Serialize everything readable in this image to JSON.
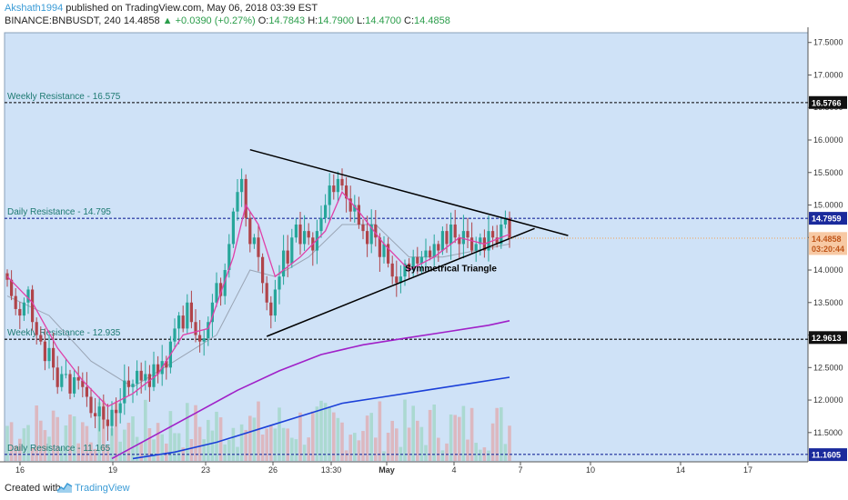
{
  "header": {
    "author": "Akshath1994",
    "published": "published on TradingView.com, May 06, 2018 03:39 EST",
    "symbol": "BINANCE:BNBUSDT, 240",
    "last": "14.4858",
    "change_arrow": "▲",
    "change": "+0.0390 (+0.27%)",
    "o_label": "O:",
    "o": "14.7843",
    "h_label": "H:",
    "h": "14.7900",
    "l_label": "L:",
    "l": "14.4700",
    "c_label": "C:",
    "c": "14.4858"
  },
  "footer": {
    "created_with": "Created with",
    "brand": "TradingView"
  },
  "colors": {
    "background": "#cfe2f7",
    "up": "#26a69a",
    "down": "#b0444a",
    "ma_fast": "#e040a8",
    "ma_slow": "#9aa5b5",
    "ma200": "#a020c8",
    "ma_blue": "#1a3fd8",
    "pattern": "#000000"
  },
  "chart_data": {
    "type": "candlestick",
    "title": "",
    "ylim": [
      11.05,
      17.65
    ],
    "y_ticks": [
      "17.5000",
      "17.0000",
      "16.5000",
      "16.0000",
      "15.5000",
      "15.0000",
      "14.5000",
      "14.0000",
      "13.5000",
      "13.0000",
      "12.5000",
      "12.0000",
      "11.5000"
    ],
    "x_ticks": [
      "16",
      "19",
      "23",
      "26",
      "13:30",
      "May",
      "4",
      "7",
      "10",
      "14",
      "17"
    ],
    "price_labels": [
      {
        "value": 16.5766,
        "text": "16.5766",
        "style": "black"
      },
      {
        "value": 14.7959,
        "text": "14.7959",
        "style": "navy"
      },
      {
        "value": 14.4858,
        "text": "14.4858",
        "style": "orange"
      },
      {
        "value": 14.33,
        "text": "03:20:44",
        "style": "orange"
      },
      {
        "value": 12.9613,
        "text": "12.9613",
        "style": "black"
      },
      {
        "value": 11.1605,
        "text": "11.1605",
        "style": "navy"
      }
    ],
    "levels": [
      {
        "name": "Weekly Resistance - 16.575",
        "value": 16.575,
        "color": "#000000"
      },
      {
        "name": "Daily Resistance - 14.795",
        "value": 14.795,
        "color": "#1a2a9c"
      },
      {
        "name": "Weekly Resistance - 12.935",
        "value": 12.935,
        "color": "#000000"
      },
      {
        "name": "Daily Resistance - 11.165",
        "value": 11.165,
        "color": "#1a2a9c"
      }
    ],
    "annotation": "Symmetrical Triangle",
    "closes": [
      13.85,
      13.6,
      13.4,
      13.3,
      13.5,
      13.7,
      13.2,
      13.0,
      12.9,
      12.6,
      12.8,
      12.5,
      12.2,
      12.4,
      12.4,
      12.1,
      12.35,
      12.3,
      12.2,
      12.05,
      11.8,
      11.75,
      11.9,
      11.7,
      11.6,
      11.85,
      11.8,
      11.95,
      12.3,
      12.2,
      12.25,
      12.45,
      12.3,
      12.4,
      12.2,
      12.55,
      12.4,
      12.6,
      12.5,
      12.9,
      13.1,
      13.3,
      13.1,
      13.5,
      13.2,
      13.0,
      12.9,
      12.95,
      13.2,
      13.5,
      13.8,
      13.6,
      14.0,
      14.4,
      14.9,
      15.2,
      15.4,
      14.8,
      14.4,
      14.5,
      14.2,
      13.8,
      13.5,
      13.3,
      13.7,
      13.9,
      14.3,
      14.1,
      14.5,
      14.7,
      14.4,
      14.6,
      14.5,
      14.3,
      14.6,
      14.8,
      15.0,
      15.3,
      15.2,
      15.4,
      15.3,
      15.1,
      14.9,
      15.0,
      14.7,
      14.6,
      14.4,
      14.7,
      14.5,
      14.2,
      14.4,
      14.1,
      13.9,
      13.8,
      13.9,
      14.1,
      14.0,
      14.2,
      14.1,
      14.2,
      14.3,
      14.2,
      14.4,
      14.3,
      14.6,
      14.4,
      14.7,
      14.5,
      14.4,
      14.6,
      14.5,
      14.3,
      14.4,
      14.5,
      14.3,
      14.6,
      14.5,
      14.4,
      14.7,
      14.8,
      14.49
    ],
    "ma_fast": [
      [
        0,
        13.9
      ],
      [
        6,
        13.5
      ],
      [
        12,
        12.8
      ],
      [
        18,
        12.3
      ],
      [
        24,
        11.9
      ],
      [
        30,
        12.1
      ],
      [
        36,
        12.4
      ],
      [
        42,
        13.0
      ],
      [
        48,
        13.1
      ],
      [
        54,
        14.2
      ],
      [
        57,
        15.0
      ],
      [
        60,
        14.7
      ],
      [
        64,
        13.9
      ],
      [
        70,
        14.2
      ],
      [
        76,
        14.6
      ],
      [
        80,
        15.2
      ],
      [
        84,
        14.9
      ],
      [
        90,
        14.4
      ],
      [
        96,
        14.0
      ],
      [
        102,
        14.2
      ],
      [
        108,
        14.5
      ],
      [
        114,
        14.4
      ],
      [
        120,
        14.55
      ]
    ],
    "ma_slow": [
      [
        0,
        13.6
      ],
      [
        10,
        13.3
      ],
      [
        20,
        12.6
      ],
      [
        30,
        12.2
      ],
      [
        40,
        12.6
      ],
      [
        50,
        13.0
      ],
      [
        58,
        14.0
      ],
      [
        64,
        13.9
      ],
      [
        72,
        14.2
      ],
      [
        80,
        14.7
      ],
      [
        88,
        14.7
      ],
      [
        96,
        14.2
      ],
      [
        104,
        14.2
      ],
      [
        112,
        14.3
      ],
      [
        120,
        14.4
      ]
    ],
    "ma200": [
      [
        25,
        11.1
      ],
      [
        35,
        11.45
      ],
      [
        45,
        11.8
      ],
      [
        55,
        12.15
      ],
      [
        65,
        12.45
      ],
      [
        75,
        12.7
      ],
      [
        85,
        12.85
      ],
      [
        95,
        12.95
      ],
      [
        105,
        13.05
      ],
      [
        115,
        13.15
      ],
      [
        120,
        13.22
      ]
    ],
    "ma_blue": [
      [
        30,
        11.1
      ],
      [
        40,
        11.2
      ],
      [
        50,
        11.35
      ],
      [
        60,
        11.55
      ],
      [
        70,
        11.75
      ],
      [
        80,
        11.95
      ],
      [
        90,
        12.05
      ],
      [
        100,
        12.15
      ],
      [
        110,
        12.25
      ],
      [
        120,
        12.35
      ]
    ],
    "triangle_upper": [
      [
        58,
        15.85
      ],
      [
        134,
        14.53
      ]
    ],
    "triangle_lower": [
      [
        62,
        12.98
      ],
      [
        126,
        14.64
      ]
    ]
  }
}
